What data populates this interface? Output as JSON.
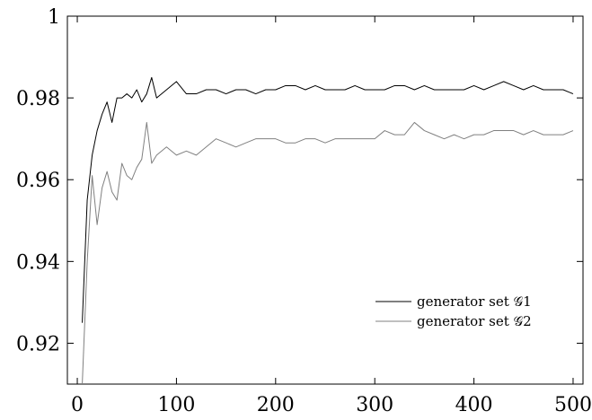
{
  "chart_data": {
    "type": "line",
    "xlim": [
      -10,
      510
    ],
    "ylim": [
      0.91,
      1.0
    ],
    "x_ticks": [
      0,
      100,
      200,
      300,
      400,
      500
    ],
    "x_tick_labels": [
      "0",
      "100",
      "200",
      "300",
      "400",
      "500"
    ],
    "y_ticks": [
      0.92,
      0.94,
      0.96,
      0.98,
      1.0
    ],
    "y_tick_labels": [
      "0.92",
      "0.94",
      "0.96",
      "0.98",
      "1"
    ],
    "grid": false,
    "legend_position": "lower-right",
    "series": [
      {
        "name": "generator set 𝒢1",
        "color": "#000000",
        "x": [
          5,
          10,
          15,
          20,
          25,
          30,
          35,
          40,
          45,
          50,
          55,
          60,
          65,
          70,
          75,
          80,
          90,
          100,
          110,
          120,
          130,
          140,
          150,
          160,
          170,
          180,
          190,
          200,
          210,
          220,
          230,
          240,
          250,
          260,
          270,
          280,
          290,
          300,
          310,
          320,
          330,
          340,
          350,
          360,
          370,
          380,
          390,
          400,
          410,
          420,
          430,
          440,
          450,
          460,
          470,
          480,
          490,
          500
        ],
        "y": [
          0.925,
          0.955,
          0.966,
          0.972,
          0.976,
          0.979,
          0.974,
          0.98,
          0.98,
          0.981,
          0.98,
          0.982,
          0.979,
          0.981,
          0.985,
          0.98,
          0.982,
          0.984,
          0.981,
          0.981,
          0.982,
          0.982,
          0.981,
          0.982,
          0.982,
          0.981,
          0.982,
          0.982,
          0.983,
          0.983,
          0.982,
          0.983,
          0.982,
          0.982,
          0.982,
          0.983,
          0.982,
          0.982,
          0.982,
          0.983,
          0.983,
          0.982,
          0.983,
          0.982,
          0.982,
          0.982,
          0.982,
          0.983,
          0.982,
          0.983,
          0.984,
          0.983,
          0.982,
          0.983,
          0.982,
          0.982,
          0.982,
          0.981
        ]
      },
      {
        "name": "generator set 𝒢2",
        "color": "#808080",
        "x": [
          5,
          10,
          15,
          20,
          25,
          30,
          35,
          40,
          45,
          50,
          55,
          60,
          65,
          70,
          75,
          80,
          90,
          100,
          110,
          120,
          130,
          140,
          150,
          160,
          170,
          180,
          190,
          200,
          210,
          220,
          230,
          240,
          250,
          260,
          270,
          280,
          290,
          300,
          310,
          320,
          330,
          340,
          350,
          360,
          370,
          380,
          390,
          400,
          410,
          420,
          430,
          440,
          450,
          460,
          470,
          480,
          490,
          500
        ],
        "y": [
          0.91,
          0.94,
          0.961,
          0.949,
          0.958,
          0.962,
          0.957,
          0.955,
          0.964,
          0.961,
          0.96,
          0.963,
          0.965,
          0.974,
          0.964,
          0.966,
          0.968,
          0.966,
          0.967,
          0.966,
          0.968,
          0.97,
          0.969,
          0.968,
          0.969,
          0.97,
          0.97,
          0.97,
          0.969,
          0.969,
          0.97,
          0.97,
          0.969,
          0.97,
          0.97,
          0.97,
          0.97,
          0.97,
          0.972,
          0.971,
          0.971,
          0.974,
          0.972,
          0.971,
          0.97,
          0.971,
          0.97,
          0.971,
          0.971,
          0.972,
          0.972,
          0.972,
          0.971,
          0.972,
          0.971,
          0.971,
          0.971,
          0.972
        ]
      }
    ]
  }
}
